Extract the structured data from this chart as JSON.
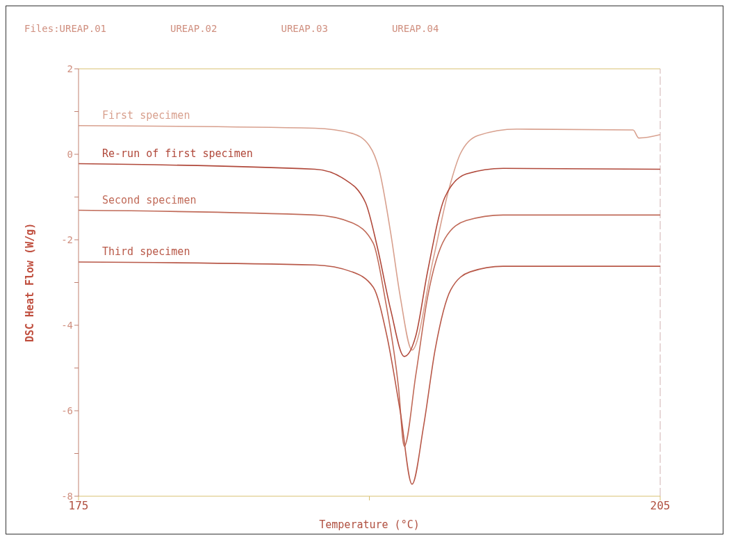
{
  "chart_data": {
    "type": "line",
    "xlabel": "Temperature (°C)",
    "ylabel": "DSC Heat Flow (W/g)",
    "annotations": [
      "Files:UREAP.01",
      "UREAP.02",
      "UREAP.03",
      "UREAP.04"
    ],
    "xlim": [
      175,
      205
    ],
    "xticks": [
      175,
      {
        "value": 190,
        "label": null
      },
      205
    ],
    "ylim": [
      -8,
      2
    ],
    "yticks": [
      2,
      {
        "value": 1,
        "label": null
      },
      0,
      {
        "value": -1,
        "label": null
      },
      -2,
      {
        "value": -3,
        "label": null
      },
      -4,
      {
        "value": -5,
        "label": null
      },
      -6,
      {
        "value": -7,
        "label": null
      },
      -8
    ],
    "grid": false,
    "marker": "none",
    "series": [
      {
        "name": "First specimen",
        "color": "#d8a08e",
        "x": [
          175,
          187.2,
          189.1,
          190.0,
          190.5,
          191.1,
          191.6,
          192.2,
          193.3,
          194.1,
          194.7,
          195.6,
          197.6,
          203.6,
          203.9,
          205
        ],
        "values": [
          0.67,
          0.61,
          0.49,
          0.2,
          -0.35,
          -1.84,
          -3.35,
          -4.58,
          -2.44,
          -0.82,
          0.02,
          0.44,
          0.59,
          0.57,
          0.38,
          0.46
        ]
      },
      {
        "name": "Re-run of first specimen",
        "color": "#b0483a",
        "x": [
          175,
          187.2,
          188.7,
          189.8,
          190.4,
          191.1,
          191.8,
          192.4,
          193.0,
          193.9,
          195.0,
          196.9,
          205
        ],
        "values": [
          -0.22,
          -0.35,
          -0.58,
          -1.13,
          -2.15,
          -3.64,
          -4.73,
          -4.24,
          -2.75,
          -1.0,
          -0.46,
          -0.33,
          -0.35
        ]
      },
      {
        "name": "Second specimen",
        "color": "#c06a58",
        "x": [
          175,
          187.2,
          189.1,
          190.2,
          190.8,
          191.5,
          191.8,
          192.4,
          193.0,
          193.9,
          195.0,
          196.9,
          205
        ],
        "values": [
          -1.31,
          -1.42,
          -1.6,
          -2.08,
          -3.35,
          -5.44,
          -6.83,
          -5.15,
          -3.35,
          -1.97,
          -1.55,
          -1.42,
          -1.42
        ]
      },
      {
        "name": "Third specimen",
        "color": "#b85848",
        "x": [
          175,
          187.2,
          189.1,
          190.2,
          190.9,
          191.6,
          192.2,
          192.8,
          193.4,
          194.2,
          195.2,
          196.9,
          205
        ],
        "values": [
          -2.52,
          -2.59,
          -2.75,
          -3.11,
          -4.24,
          -6.04,
          -7.72,
          -6.35,
          -4.55,
          -3.17,
          -2.75,
          -2.62,
          -2.62
        ]
      }
    ]
  }
}
